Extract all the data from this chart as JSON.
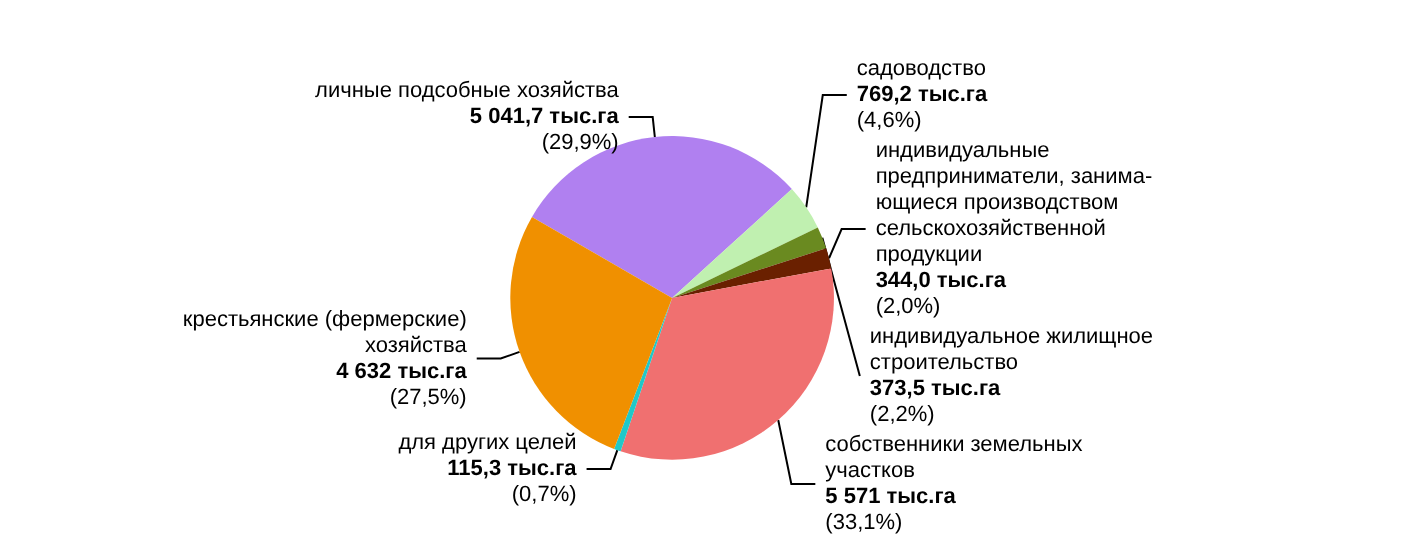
{
  "chart_data": {
    "type": "pie",
    "categories": [
      "личные подсобные хозяйства",
      "садоводство",
      "индивидуальное жилищное\nстроительство",
      "индивидуальные\nпредприниматели, занима-\nющиеся производством\nсельскохозяйственной\nпродукции",
      "собственники земельных\nучастков",
      "для других целей",
      "крестьянские (фермерские)\nхозяйства"
    ],
    "values": [
      5041.7,
      769.2,
      373.5,
      344.0,
      5571,
      115.3,
      4632
    ],
    "colors": [
      "#b080f0",
      "#c0f0b0",
      "#6a8a20",
      "#6a2000",
      "#f07070",
      "#20c8c8",
      "#f09000"
    ],
    "value_labels": [
      "5 041,7 тыс.га\n(29,9%)",
      "769,2 тыс.га\n(4,6%)",
      "373,5 тыс.га\n(2,2%)",
      "344,0 тыс.га\n(2,0%)",
      "5 571 тыс.га\n(33,1%)",
      "115,3 тыс.га\n(0,7%)",
      "4 632 тыс.га\n(27,5%)"
    ],
    "legend": false
  }
}
